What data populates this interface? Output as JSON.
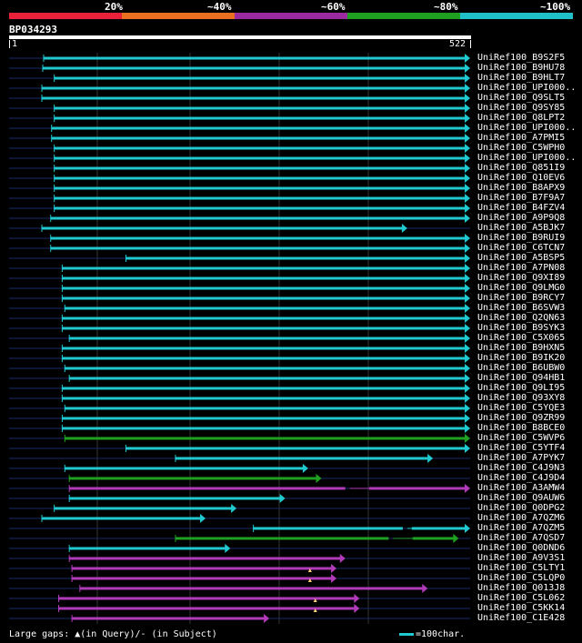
{
  "scale": {
    "segments": [
      {
        "color": "#e8203a"
      },
      {
        "color": "#e87020"
      },
      {
        "color": "#9a2aa0"
      },
      {
        "color": "#20a020"
      },
      {
        "color": "#20c0c8"
      }
    ],
    "labels": [
      "20%",
      "~40%",
      "~60%",
      "~80%",
      "~100%"
    ]
  },
  "query": {
    "id": "BP034293",
    "start": "1",
    "end": "522",
    "length": 522
  },
  "colors": {
    "cyan": "#20c8d0",
    "green": "#20a020",
    "purple": "#b03ab8",
    "navy": "#1a2a6a",
    "grid": "#333333"
  },
  "hits": [
    {
      "label": "UniRef100_B9S2F5",
      "start": 40,
      "end": 522,
      "color": "cyan"
    },
    {
      "label": "UniRef100_B9HU78",
      "start": 39,
      "end": 522,
      "color": "cyan"
    },
    {
      "label": "UniRef100_B9HLT7",
      "start": 52,
      "end": 522,
      "color": "cyan"
    },
    {
      "label": "UniRef100_UPI000..",
      "start": 38,
      "end": 522,
      "color": "cyan"
    },
    {
      "label": "UniRef100_Q9SLT5",
      "start": 38,
      "end": 522,
      "color": "cyan"
    },
    {
      "label": "UniRef100_Q9SY85",
      "start": 52,
      "end": 522,
      "color": "cyan"
    },
    {
      "label": "UniRef100_Q8LPT2",
      "start": 52,
      "end": 522,
      "color": "cyan"
    },
    {
      "label": "UniRef100_UPI000..",
      "start": 49,
      "end": 522,
      "color": "cyan"
    },
    {
      "label": "UniRef100_A7PMI5",
      "start": 49,
      "end": 522,
      "color": "cyan"
    },
    {
      "label": "UniRef100_C5WPH0",
      "start": 52,
      "end": 522,
      "color": "cyan"
    },
    {
      "label": "UniRef100_UPI000..",
      "start": 52,
      "end": 522,
      "color": "cyan"
    },
    {
      "label": "UniRef100_Q851I9",
      "start": 52,
      "end": 522,
      "color": "cyan"
    },
    {
      "label": "UniRef100_Q10EV6",
      "start": 52,
      "end": 522,
      "color": "cyan"
    },
    {
      "label": "UniRef100_B8APX9",
      "start": 52,
      "end": 522,
      "color": "cyan"
    },
    {
      "label": "UniRef100_B7F9A7",
      "start": 52,
      "end": 522,
      "color": "cyan"
    },
    {
      "label": "UniRef100_B4FZV4",
      "start": 52,
      "end": 522,
      "color": "cyan"
    },
    {
      "label": "UniRef100_A9P9Q8",
      "start": 48,
      "end": 522,
      "color": "cyan"
    },
    {
      "label": "UniRef100_A5BJK7",
      "start": 38,
      "end": 451,
      "color": "cyan"
    },
    {
      "label": "UniRef100_B9RUI9",
      "start": 48,
      "end": 522,
      "color": "cyan"
    },
    {
      "label": "UniRef100_C6TCN7",
      "start": 48,
      "end": 522,
      "color": "cyan"
    },
    {
      "label": "UniRef100_A5BSP5",
      "start": 133,
      "end": 522,
      "color": "cyan"
    },
    {
      "label": "UniRef100_A7PN08",
      "start": 61,
      "end": 522,
      "color": "cyan"
    },
    {
      "label": "UniRef100_Q9XI89",
      "start": 61,
      "end": 522,
      "color": "cyan"
    },
    {
      "label": "UniRef100_Q9LMG0",
      "start": 61,
      "end": 522,
      "color": "cyan"
    },
    {
      "label": "UniRef100_B9RCY7",
      "start": 61,
      "end": 522,
      "color": "cyan"
    },
    {
      "label": "UniRef100_B6SVW3",
      "start": 64,
      "end": 522,
      "color": "cyan"
    },
    {
      "label": "UniRef100_Q2QN63",
      "start": 61,
      "end": 522,
      "color": "cyan"
    },
    {
      "label": "UniRef100_B9SYK3",
      "start": 61,
      "end": 522,
      "color": "cyan"
    },
    {
      "label": "UniRef100_C5X065",
      "start": 69,
      "end": 522,
      "color": "cyan"
    },
    {
      "label": "UniRef100_B9HXN5",
      "start": 61,
      "end": 522,
      "color": "cyan"
    },
    {
      "label": "UniRef100_B9IK20",
      "start": 61,
      "end": 522,
      "color": "cyan"
    },
    {
      "label": "UniRef100_B6UBW0",
      "start": 64,
      "end": 522,
      "color": "cyan"
    },
    {
      "label": "UniRef100_Q94HB1",
      "start": 69,
      "end": 522,
      "color": "cyan"
    },
    {
      "label": "UniRef100_Q9LI95",
      "start": 61,
      "end": 522,
      "color": "cyan"
    },
    {
      "label": "UniRef100_Q93XY8",
      "start": 61,
      "end": 522,
      "color": "cyan"
    },
    {
      "label": "UniRef100_C5YQE3",
      "start": 64,
      "end": 522,
      "color": "cyan"
    },
    {
      "label": "UniRef100_Q9ZR99",
      "start": 61,
      "end": 522,
      "color": "cyan"
    },
    {
      "label": "UniRef100_B8BCE0",
      "start": 61,
      "end": 522,
      "color": "cyan"
    },
    {
      "label": "UniRef100_C5WVP6",
      "start": 64,
      "end": 522,
      "color": "green"
    },
    {
      "label": "UniRef100_C5YTF4",
      "start": 133,
      "end": 522,
      "color": "cyan"
    },
    {
      "label": "UniRef100_A7PYK7",
      "start": 189,
      "end": 480,
      "color": "cyan"
    },
    {
      "label": "UniRef100_C4J9N3",
      "start": 64,
      "end": 339,
      "color": "cyan"
    },
    {
      "label": "UniRef100_C4J9D4",
      "start": 69,
      "end": 354,
      "color": "green"
    },
    {
      "label": "UniRef100_A3AMW4",
      "start": 69,
      "end": 522,
      "color": "purple",
      "gap": [
        386,
        408
      ]
    },
    {
      "label": "UniRef100_Q9AUW6",
      "start": 69,
      "end": 313,
      "color": "cyan"
    },
    {
      "label": "UniRef100_Q0DPG2",
      "start": 52,
      "end": 258,
      "color": "cyan"
    },
    {
      "label": "UniRef100_A7QZM6",
      "start": 38,
      "end": 223,
      "color": "cyan"
    },
    {
      "label": "UniRef100_A7QZM5",
      "start": 277,
      "end": 522,
      "color": "cyan",
      "gap": [
        451,
        456
      ]
    },
    {
      "label": "UniRef100_A7QSD7",
      "start": 189,
      "end": 509,
      "color": "green",
      "gap": [
        435,
        457
      ]
    },
    {
      "label": "UniRef100_Q0DND6",
      "start": 69,
      "end": 251,
      "color": "cyan"
    },
    {
      "label": "UniRef100_A9V3S1",
      "start": 69,
      "end": 381,
      "color": "purple"
    },
    {
      "label": "UniRef100_C5LTY1",
      "start": 72,
      "end": 371,
      "color": "purple",
      "mark": 341
    },
    {
      "label": "UniRef100_C5LQP0",
      "start": 72,
      "end": 371,
      "color": "purple",
      "mark": 341
    },
    {
      "label": "UniRef100_Q013J8",
      "start": 81,
      "end": 474,
      "color": "purple"
    },
    {
      "label": "UniRef100_C5L062",
      "start": 57,
      "end": 397,
      "color": "purple",
      "mark": 347
    },
    {
      "label": "UniRef100_C5KK14",
      "start": 57,
      "end": 397,
      "color": "purple",
      "mark": 347
    },
    {
      "label": "UniRef100_C1E428",
      "start": 72,
      "end": 295,
      "color": "purple"
    }
  ],
  "legend": {
    "text": "Large gaps: ▲(in Query)/- (in Subject)",
    "scale": "=100char."
  }
}
